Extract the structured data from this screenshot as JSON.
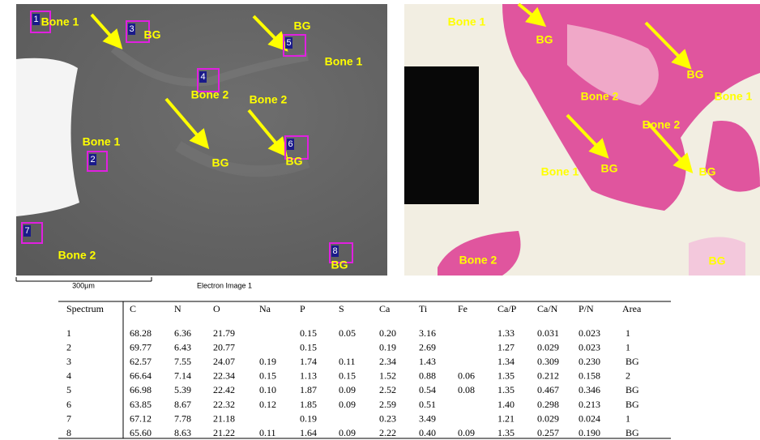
{
  "left_image": {
    "labels": [
      "Bone 1",
      "BG",
      "BG",
      "Bone 1",
      "Bone 2",
      "Bone 2",
      "Bone 1",
      "BG",
      "BG",
      "Bone 2",
      "BG"
    ],
    "boxes": [
      "1",
      "3",
      "5",
      "4",
      "2",
      "6",
      "7",
      "8"
    ],
    "scale_bar": "300µm",
    "caption": "Electron Image 1"
  },
  "right_image": {
    "labels": [
      "Bone 1",
      "BG",
      "BG",
      "Bone 2",
      "Bone 1",
      "Bone 2",
      "Bone 1",
      "BG",
      "BG",
      "Bone 2",
      "BG"
    ]
  },
  "table": {
    "header": [
      "Spectrum",
      "C",
      "N",
      "O",
      "Na",
      "P",
      "S",
      "Ca",
      "Ti",
      "Fe",
      "Ca/P",
      "Ca/N",
      "P/N",
      "Area"
    ],
    "rows": [
      [
        "1",
        "68.28",
        "6.36",
        "21.79",
        null,
        "0.15",
        "0.05",
        "0.20",
        "3.16",
        null,
        "1.33",
        "0.031",
        "0.023",
        "1"
      ],
      [
        "2",
        "69.77",
        "6.43",
        "20.77",
        null,
        "0.15",
        null,
        "0.19",
        "2.69",
        null,
        "1.27",
        "0.029",
        "0.023",
        "1"
      ],
      [
        "3",
        "62.57",
        "7.55",
        "24.07",
        "0.19",
        "1.74",
        "0.11",
        "2.34",
        "1.43",
        null,
        "1.34",
        "0.309",
        "0.230",
        "BG"
      ],
      [
        "4",
        "66.64",
        "7.14",
        "22.34",
        "0.15",
        "1.13",
        "0.15",
        "1.52",
        "0.88",
        "0.06",
        "1.35",
        "0.212",
        "0.158",
        "2"
      ],
      [
        "5",
        "66.98",
        "5.39",
        "22.42",
        "0.10",
        "1.87",
        "0.09",
        "2.52",
        "0.54",
        "0.08",
        "1.35",
        "0.467",
        "0.346",
        "BG"
      ],
      [
        "6",
        "63.85",
        "8.67",
        "22.32",
        "0.12",
        "1.85",
        "0.09",
        "2.59",
        "0.51",
        null,
        "1.40",
        "0.298",
        "0.213",
        "BG"
      ],
      [
        "7",
        "67.12",
        "7.78",
        "21.18",
        null,
        "0.19",
        null,
        "0.23",
        "3.49",
        null,
        "1.21",
        "0.029",
        "0.024",
        "1"
      ],
      [
        "8",
        "65.60",
        "8.63",
        "21.22",
        "0.11",
        "1.64",
        "0.09",
        "2.22",
        "0.40",
        "0.09",
        "1.35",
        "0.257",
        "0.190",
        "BG"
      ]
    ]
  }
}
